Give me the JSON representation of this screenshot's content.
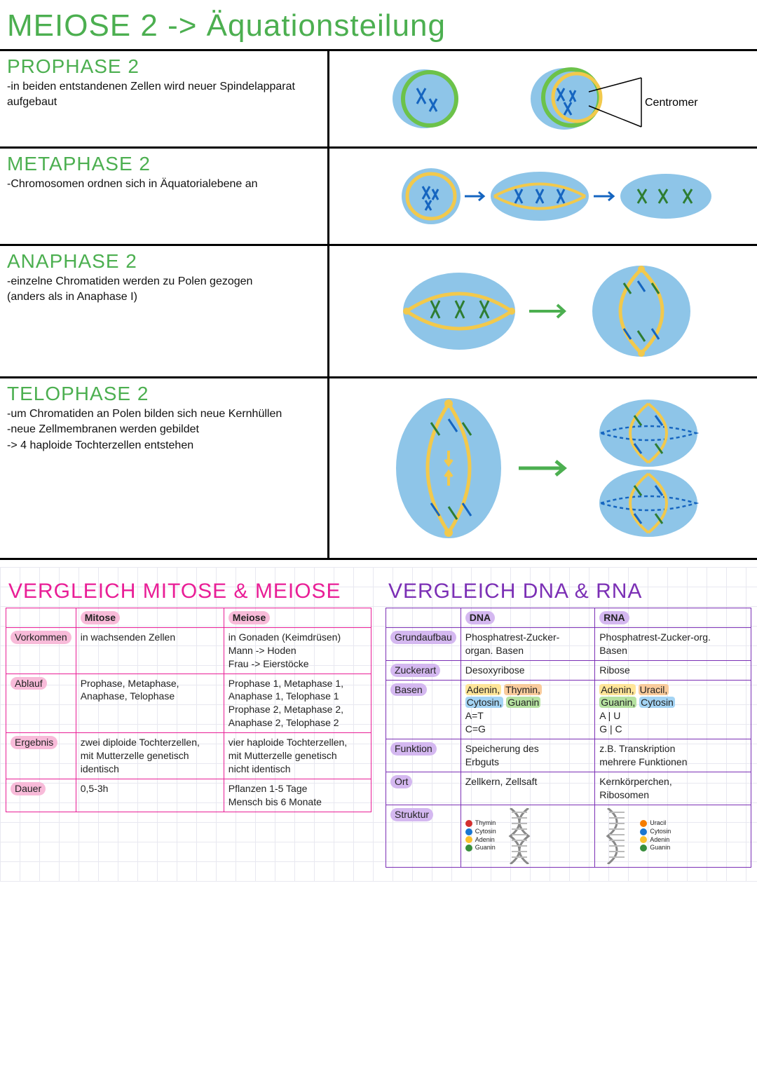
{
  "colors": {
    "green": "#4caf50",
    "pink": "#e91e96",
    "pink_hl": "#f8bbd9",
    "purple": "#7b2fb5",
    "purple_hl": "#d4b8f0",
    "cell_blue": "#8ec5e8",
    "cell_green": "#6cc24a",
    "spindle_yellow": "#f2c94c",
    "chrom_blue": "#1565c0",
    "chrom_green": "#2e7d32",
    "arrow_green": "#4caf50",
    "black": "#000000",
    "hl_yellow": "#ffe599",
    "hl_orange": "#f9cb9c",
    "hl_blue": "#a4d4f4",
    "hl_green": "#b6e2a1",
    "legend_red": "#d32f2f",
    "legend_blue": "#1976d2",
    "legend_yellow": "#fbc02d",
    "legend_green": "#388e3c",
    "legend_orange": "#f57c00"
  },
  "title": "MEIOSE 2 -> Äquationsteilung",
  "phases": [
    {
      "heading": "PROPHASE 2",
      "notes": [
        "-in beiden entstandenen Zellen wird neuer Spindelapparat aufgebaut"
      ],
      "diagram_label": "Centromer"
    },
    {
      "heading": "METAPHASE 2",
      "notes": [
        "-Chromosomen ordnen sich in Äquatorialebene an"
      ]
    },
    {
      "heading": "ANAPHASE 2",
      "notes": [
        "-einzelne Chromatiden werden zu Polen gezogen",
        "(anders als in Anaphase I)"
      ]
    },
    {
      "heading": "TELOPHASE 2",
      "notes": [
        "-um Chromatiden an Polen bilden sich neue Kernhüllen",
        "-neue Zellmembranen werden gebildet",
        "-> 4 haploide Tochterzellen entstehen"
      ]
    }
  ],
  "mitose_meiose": {
    "title": "VERGLEICH MITOSE & MEIOSE",
    "col_headers": [
      "Mitose",
      "Meiose"
    ],
    "rows": [
      {
        "head": "Vorkommen",
        "c1": "in wachsenden Zellen",
        "c2": "in Gonaden (Keimdrüsen)\nMann -> Hoden\nFrau -> Eierstöcke"
      },
      {
        "head": "Ablauf",
        "c1": "Prophase, Metaphase,\nAnaphase, Telophase",
        "c2": "Prophase 1, Metaphase 1,\nAnaphase 1, Telophase 1\nProphase 2, Metaphase 2,\nAnaphase 2, Telophase 2"
      },
      {
        "head": "Ergebnis",
        "c1": "zwei diploide Tochterzellen,\nmit Mutterzelle genetisch\nidentisch",
        "c2": "vier haploide Tochterzellen,\nmit Mutterzelle genetisch\nnicht identisch"
      },
      {
        "head": "Dauer",
        "c1": "0,5-3h",
        "c2": "Pflanzen 1-5 Tage\nMensch bis 6 Monate"
      }
    ]
  },
  "dna_rna": {
    "title": "VERGLEICH DNA & RNA",
    "col_headers": [
      "DNA",
      "RNA"
    ],
    "rows": [
      {
        "head": "Grundaufbau",
        "c1": "Phosphatrest-Zucker-\norgan. Basen",
        "c2": "Phosphatrest-Zucker-org.\nBasen"
      },
      {
        "head": "Zuckerart",
        "c1": "Desoxyribose",
        "c2": "Ribose"
      },
      {
        "head": "Basen",
        "c1_parts": [
          {
            "t": "Adenin,",
            "hl": "hl_yellow"
          },
          {
            "t": " "
          },
          {
            "t": "Thymin,",
            "hl": "hl_orange"
          },
          {
            "t": "\n"
          },
          {
            "t": "Cytosin,",
            "hl": "hl_blue"
          },
          {
            "t": " "
          },
          {
            "t": "Guanin",
            "hl": "hl_green"
          },
          {
            "t": "\nA=T\nC=G"
          }
        ],
        "c2_parts": [
          {
            "t": "Adenin,",
            "hl": "hl_yellow"
          },
          {
            "t": " "
          },
          {
            "t": "Uracil,",
            "hl": "hl_orange"
          },
          {
            "t": "\n"
          },
          {
            "t": "Guanin,",
            "hl": "hl_green"
          },
          {
            "t": " "
          },
          {
            "t": "Cytosin",
            "hl": "hl_blue"
          },
          {
            "t": "\nA | U\nG | C"
          }
        ]
      },
      {
        "head": "Funktion",
        "c1": "Speicherung des\nErbguts",
        "c2": "z.B. Transkription\nmehrere Funktionen"
      },
      {
        "head": "Ort",
        "c1": "Zellkern, Zellsaft",
        "c2": "Kernkörperchen,\nRibosomen"
      },
      {
        "head": "Struktur",
        "struktur": true,
        "dna_legend": [
          {
            "color": "legend_red",
            "label": "Thymin"
          },
          {
            "color": "legend_blue",
            "label": "Cytosin"
          },
          {
            "color": "legend_yellow",
            "label": "Adenin"
          },
          {
            "color": "legend_green",
            "label": "Guanin"
          }
        ],
        "rna_legend": [
          {
            "color": "legend_orange",
            "label": "Uracil"
          },
          {
            "color": "legend_blue",
            "label": "Cytosin"
          },
          {
            "color": "legend_yellow",
            "label": "Adenin"
          },
          {
            "color": "legend_green",
            "label": "Guanin"
          }
        ]
      }
    ]
  }
}
